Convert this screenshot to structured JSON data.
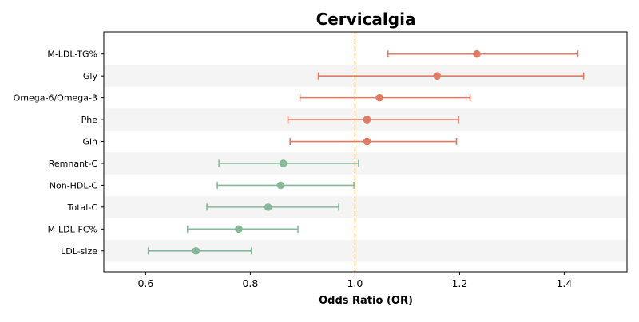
{
  "chart_data": {
    "type": "forest",
    "title": "Cervicalgia",
    "xlabel": "Odds Ratio (OR)",
    "ylabel": "",
    "xlim": [
      0.52,
      1.52
    ],
    "xticks": [
      "0.6",
      "0.8",
      "1.0",
      "1.2",
      "1.4"
    ],
    "reference_line": 1.0,
    "grid": false,
    "row_shading": "alternating",
    "colors": {
      "risk": "#e07b64",
      "protective": "#86b89a",
      "reference": "#f0c27a",
      "band": "#f4f4f4"
    },
    "rows": [
      {
        "label": "M-LDL-TG%",
        "or": 1.233,
        "lower": 1.063,
        "upper": 1.426,
        "group": "risk"
      },
      {
        "label": "Gly",
        "or": 1.157,
        "lower": 0.93,
        "upper": 1.437,
        "group": "risk"
      },
      {
        "label": "Omega-6/Omega-3",
        "or": 1.047,
        "lower": 0.895,
        "upper": 1.22,
        "group": "risk"
      },
      {
        "label": "Phe",
        "or": 1.023,
        "lower": 0.872,
        "upper": 1.198,
        "group": "risk"
      },
      {
        "label": "Gln",
        "or": 1.023,
        "lower": 0.876,
        "upper": 1.194,
        "group": "risk"
      },
      {
        "label": "Remnant-C",
        "or": 0.863,
        "lower": 0.74,
        "upper": 1.007,
        "group": "protective"
      },
      {
        "label": "Non-HDL-C",
        "or": 0.858,
        "lower": 0.737,
        "upper": 0.998,
        "group": "protective"
      },
      {
        "label": "Total-C",
        "or": 0.834,
        "lower": 0.717,
        "upper": 0.969,
        "group": "protective"
      },
      {
        "label": "M-LDL-FC%",
        "or": 0.778,
        "lower": 0.68,
        "upper": 0.891,
        "group": "protective"
      },
      {
        "label": "LDL-size",
        "or": 0.696,
        "lower": 0.605,
        "upper": 0.802,
        "group": "protective"
      }
    ]
  }
}
